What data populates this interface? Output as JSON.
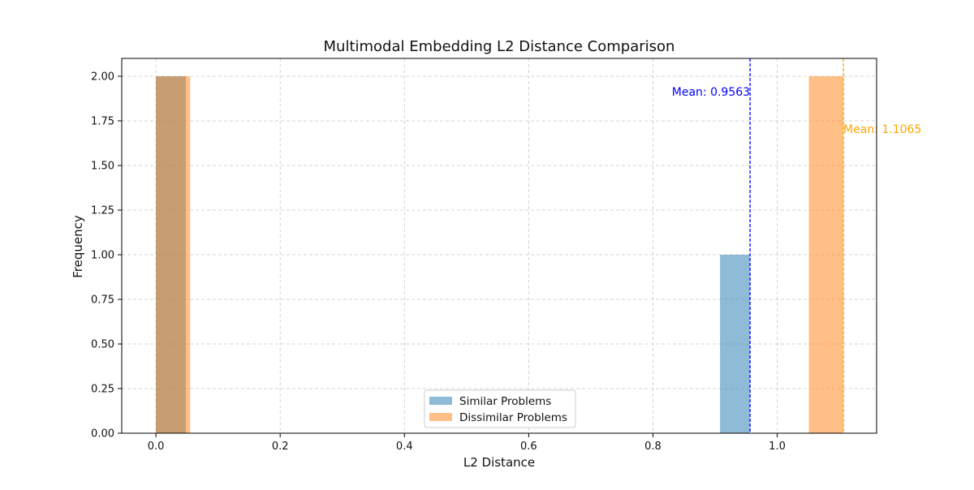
{
  "chart_data": {
    "type": "bar",
    "title": "Multimodal Embedding L2 Distance Comparison",
    "xlabel": "L2 Distance",
    "ylabel": "Frequency",
    "xlim": [
      -0.055,
      1.16
    ],
    "ylim": [
      0,
      2.1
    ],
    "x_ticks": [
      0.0,
      0.2,
      0.4,
      0.6,
      0.8,
      1.0
    ],
    "x_tick_labels": [
      "0.0",
      "0.2",
      "0.4",
      "0.6",
      "0.8",
      "1.0"
    ],
    "y_ticks": [
      0.0,
      0.25,
      0.5,
      0.75,
      1.0,
      1.25,
      1.5,
      1.75,
      2.0
    ],
    "y_tick_labels": [
      "0.00",
      "0.25",
      "0.50",
      "0.75",
      "1.00",
      "1.25",
      "1.50",
      "1.75",
      "2.00"
    ],
    "grid": true,
    "legend_position": "lower-center",
    "series": [
      {
        "name": "Similar Problems",
        "color": "#1f77b4",
        "opacity": 0.5,
        "bins": [
          {
            "x0": 0.0,
            "x1": 0.048,
            "count": 2
          },
          {
            "x0": 0.908,
            "x1": 0.956,
            "count": 1
          }
        ],
        "mean": 0.9563,
        "mean_label": "Mean: 0.9563",
        "mean_line_color": "#0000ff"
      },
      {
        "name": "Dissimilar Problems",
        "color": "#ff7f0e",
        "opacity": 0.5,
        "bins": [
          {
            "x0": 0.0,
            "x1": 0.055,
            "count": 2
          },
          {
            "x0": 1.051,
            "x1": 1.1065,
            "count": 2
          }
        ],
        "mean": 1.1065,
        "mean_label": "Mean: 1.1065",
        "mean_line_color": "#ffa500"
      }
    ]
  }
}
